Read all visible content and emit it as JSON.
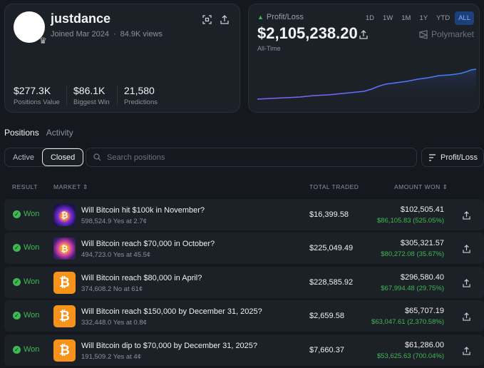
{
  "profile": {
    "username": "justdance",
    "joined": "Joined Mar 2024",
    "views": "84.9K views",
    "stats": [
      {
        "value": "$277.3K",
        "label": "Positions Value"
      },
      {
        "value": "$86.1K",
        "label": "Biggest Win"
      },
      {
        "value": "21,580",
        "label": "Predictions"
      }
    ]
  },
  "pnl": {
    "label": "Profit/Loss",
    "value": "$2,105,238.20",
    "period": "All-Time",
    "brand": "Polymarket",
    "ranges": [
      "1D",
      "1W",
      "1M",
      "1Y",
      "YTD",
      "ALL"
    ],
    "active_range": "ALL",
    "accent": "#7b61ff"
  },
  "tabs": {
    "positions": "Positions",
    "activity": "Activity"
  },
  "filters": {
    "active": "Active",
    "closed": "Closed"
  },
  "search": {
    "placeholder": "Search positions"
  },
  "sort": {
    "label": "Profit/Loss"
  },
  "table": {
    "headers": {
      "result": "RESULT",
      "market": "MARKET",
      "total": "TOTAL TRADED",
      "amount": "AMOUNT WON"
    },
    "rows": [
      {
        "result": "Won",
        "title": "Will Bitcoin hit $100k in November?",
        "sub": "598,524.9 Yes at 2.7¢",
        "total": "$16,399.58",
        "amount": "$102,505.41",
        "gain": "$86,105.83 (525.05%)",
        "thumb": "neon1"
      },
      {
        "result": "Won",
        "title": "Will Bitcoin reach $70,000 in October?",
        "sub": "494,723.0 Yes at 45.5¢",
        "total": "$225,049.49",
        "amount": "$305,321.57",
        "gain": "$80,272.08 (35.67%)",
        "thumb": "neon2"
      },
      {
        "result": "Won",
        "title": "Will Bitcoin reach $80,000 in April?",
        "sub": "374,608.2 No at 61¢",
        "total": "$228,585.92",
        "amount": "$296,580.40",
        "gain": "$67,994.48 (29.75%)",
        "thumb": "btc"
      },
      {
        "result": "Won",
        "title": "Will Bitcoin reach $150,000 by December 31, 2025?",
        "sub": "332,448.0 Yes at 0.8¢",
        "total": "$2,659.58",
        "amount": "$65,707.19",
        "gain": "$63,047.61 (2,370.58%)",
        "thumb": "btc"
      },
      {
        "result": "Won",
        "title": "Will Bitcoin dip to $70,000 by December 31, 2025?",
        "sub": "191,509.2 Yes at 4¢",
        "total": "$7,660.37",
        "amount": "$61,286.00",
        "gain": "$53,625.63 (700.04%)",
        "thumb": "btc"
      }
    ]
  }
}
